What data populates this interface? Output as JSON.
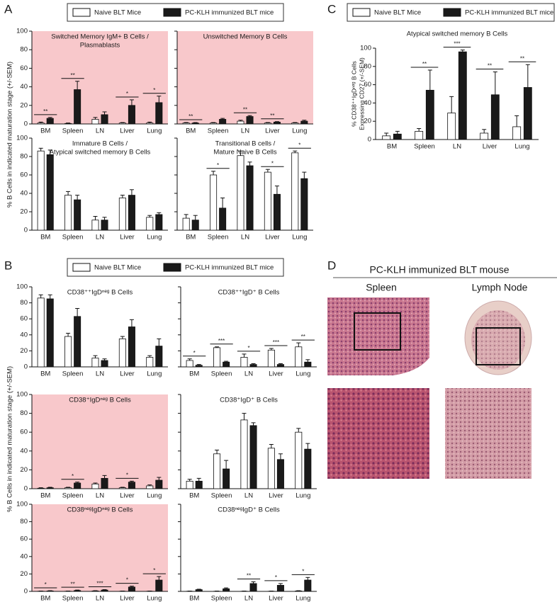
{
  "panel_labels": [
    "A",
    "B",
    "C",
    "D"
  ],
  "shared_y_labels": [
    "% B Cells in indicated maturation stage (+/-SEM)",
    "% B Cells in indicated maturation stage (+/-SEM)"
  ],
  "images": {
    "title": "PC-KLH immunized BLT mouse",
    "columns": [
      "Spleen",
      "Lymph Node"
    ]
  },
  "chart_data": [
    {
      "type": "bar",
      "title": [
        "Switched Memory IgM+ B Cells /",
        "Plasmablasts"
      ],
      "background": "#f8c8cb",
      "categories": [
        "BM",
        "Spleen",
        "LN",
        "Liver",
        "Lung"
      ],
      "ylim": [
        0,
        100
      ],
      "yticks": [
        0,
        20,
        40,
        60,
        80,
        100
      ],
      "series": [
        {
          "name": "Naive BLT Mice",
          "color": "#ffffff",
          "values": [
            1,
            0.5,
            5,
            1,
            1
          ],
          "errors": [
            1,
            0.5,
            2,
            0.5,
            1
          ]
        },
        {
          "name": "PC-KLH immunized BLT mice",
          "color": "#1a1a1a",
          "values": [
            6,
            37,
            10,
            20,
            23
          ],
          "errors": [
            1,
            9,
            3,
            6,
            7
          ]
        }
      ],
      "significance": [
        {
          "category": "BM",
          "label": "**"
        },
        {
          "category": "Spleen",
          "label": "**"
        },
        {
          "category": "Liver",
          "label": "*"
        },
        {
          "category": "Lung",
          "label": "*"
        }
      ]
    },
    {
      "type": "bar",
      "title": [
        "Unswitched Memory B Cells"
      ],
      "background": "#f8c8cb",
      "categories": [
        "BM",
        "Spleen",
        "LN",
        "Liver",
        "Lung"
      ],
      "ylim": [
        0,
        100
      ],
      "yticks": [
        0,
        20,
        40,
        60,
        80,
        100
      ],
      "series": [
        {
          "name": "Naive BLT Mice",
          "color": "#ffffff",
          "values": [
            1,
            1,
            3,
            1,
            1
          ],
          "errors": [
            0.5,
            0.5,
            1,
            0.5,
            0.5
          ]
        },
        {
          "name": "PC-KLH immunized BLT mice",
          "color": "#1a1a1a",
          "values": [
            1,
            5,
            8,
            2,
            3
          ],
          "errors": [
            0.5,
            1,
            1,
            0.5,
            1
          ]
        }
      ],
      "significance": [
        {
          "category": "BM",
          "label": "**"
        },
        {
          "category": "LN",
          "label": "**"
        },
        {
          "category": "Liver",
          "label": "**"
        }
      ]
    },
    {
      "type": "bar",
      "title": [
        "Immature B Cells /",
        "Atypical switched memory B Cells"
      ],
      "categories": [
        "BM",
        "Spleen",
        "LN",
        "Liver",
        "Lung"
      ],
      "ylim": [
        0,
        100
      ],
      "yticks": [
        0,
        20,
        40,
        60,
        80,
        100
      ],
      "series": [
        {
          "name": "Naive BLT Mice",
          "color": "#ffffff",
          "values": [
            86,
            38,
            11,
            35,
            14
          ],
          "errors": [
            3,
            4,
            4,
            3,
            2
          ]
        },
        {
          "name": "PC-KLH immunized BLT mice",
          "color": "#1a1a1a",
          "values": [
            82,
            33,
            11,
            38,
            17
          ],
          "errors": [
            5,
            5,
            3,
            6,
            2
          ]
        }
      ],
      "significance": []
    },
    {
      "type": "bar",
      "title": [
        "Transitional B cells /",
        "Mature Naive B Cells"
      ],
      "categories": [
        "BM",
        "Spleen",
        "LN",
        "Liver",
        "Lung"
      ],
      "ylim": [
        0,
        100
      ],
      "yticks": [
        0,
        20,
        40,
        60,
        80,
        100
      ],
      "series": [
        {
          "name": "Naive BLT Mice",
          "color": "#ffffff",
          "values": [
            13,
            60,
            81,
            63,
            84
          ],
          "errors": [
            4,
            4,
            5,
            3,
            2
          ]
        },
        {
          "name": "PC-KLH immunized BLT mice",
          "color": "#1a1a1a",
          "values": [
            11,
            24,
            70,
            39,
            56
          ],
          "errors": [
            5,
            11,
            4,
            9,
            7
          ]
        }
      ],
      "significance": [
        {
          "category": "Spleen",
          "label": "*"
        },
        {
          "category": "Liver",
          "label": "*"
        },
        {
          "category": "Lung",
          "label": "*"
        }
      ]
    },
    {
      "type": "bar",
      "title": [
        "Atypical switched memory B Cells"
      ],
      "ylabel": [
        "% CD38⁺⁺IgDⁿᵉᵍ B Cells",
        "Expressing CD27 (+/-SEM)"
      ],
      "categories": [
        "BM",
        "Spleen",
        "LN",
        "Liver",
        "Lung"
      ],
      "ylim": [
        0,
        100
      ],
      "yticks": [
        0,
        20,
        40,
        60,
        80,
        100
      ],
      "series": [
        {
          "name": "Naive BLT Mice",
          "color": "#ffffff",
          "values": [
            4,
            9,
            29,
            7,
            14
          ],
          "errors": [
            3,
            3,
            18,
            4,
            12
          ]
        },
        {
          "name": "PC-KLH immunized BLT mice",
          "color": "#1a1a1a",
          "values": [
            6,
            54,
            96,
            49,
            57
          ],
          "errors": [
            3,
            22,
            2,
            25,
            25
          ]
        }
      ],
      "significance": [
        {
          "category": "Spleen",
          "label": "**"
        },
        {
          "category": "LN",
          "label": "***"
        },
        {
          "category": "Liver",
          "label": "**"
        },
        {
          "category": "Lung",
          "label": "**"
        }
      ]
    },
    {
      "type": "bar",
      "title": [
        "CD38⁺⁺IgDⁿᵉᵍ B Cells"
      ],
      "categories": [
        "BM",
        "Spleen",
        "LN",
        "Liver",
        "Lung"
      ],
      "ylim": [
        0,
        100
      ],
      "yticks": [
        0,
        20,
        40,
        60,
        80,
        100
      ],
      "series": [
        {
          "name": "Naive BLT Mice",
          "color": "#ffffff",
          "values": [
            86,
            38,
            11,
            35,
            12
          ],
          "errors": [
            4,
            4,
            3,
            3,
            2
          ]
        },
        {
          "name": "PC-KLH immunized BLT mice",
          "color": "#1a1a1a",
          "values": [
            85,
            63,
            8,
            50,
            26
          ],
          "errors": [
            5,
            10,
            2,
            9,
            9
          ]
        }
      ],
      "significance": []
    },
    {
      "type": "bar",
      "title": [
        "CD38⁺⁺IgD⁺ B Cells"
      ],
      "categories": [
        "BM",
        "Spleen",
        "LN",
        "Liver",
        "Lung"
      ],
      "ylim": [
        0,
        100
      ],
      "yticks": [
        0,
        20,
        40,
        60,
        80,
        100
      ],
      "series": [
        {
          "name": "Naive BLT Mice",
          "color": "#ffffff",
          "values": [
            8,
            24,
            12,
            21,
            25
          ],
          "errors": [
            2,
            1,
            4,
            2,
            5
          ]
        },
        {
          "name": "PC-KLH immunized BLT mice",
          "color": "#1a1a1a",
          "values": [
            2,
            6,
            3,
            3,
            6
          ],
          "errors": [
            1,
            1,
            1,
            1,
            3
          ]
        }
      ],
      "significance": [
        {
          "category": "BM",
          "label": "*"
        },
        {
          "category": "Spleen",
          "label": "***"
        },
        {
          "category": "LN",
          "label": "*"
        },
        {
          "category": "Liver",
          "label": "***"
        },
        {
          "category": "Lung",
          "label": "**"
        }
      ]
    },
    {
      "type": "bar",
      "title": [
        "CD38⁺IgDⁿᵉᵍ B Cells"
      ],
      "background": "#f8c8cb",
      "categories": [
        "BM",
        "Spleen",
        "LN",
        "Liver",
        "Lung"
      ],
      "ylim": [
        0,
        100
      ],
      "yticks": [
        0,
        20,
        40,
        60,
        80,
        100
      ],
      "series": [
        {
          "name": "Naive BLT Mice",
          "color": "#ffffff",
          "values": [
            0.5,
            1,
            5,
            1,
            3
          ],
          "errors": [
            0.5,
            0.5,
            1,
            0.5,
            1
          ]
        },
        {
          "name": "PC-KLH immunized BLT mice",
          "color": "#1a1a1a",
          "values": [
            1,
            6,
            11,
            7,
            9
          ],
          "errors": [
            0.5,
            1,
            3,
            1,
            3
          ]
        }
      ],
      "significance": [
        {
          "category": "Spleen",
          "label": "*"
        },
        {
          "category": "Liver",
          "label": "*"
        }
      ]
    },
    {
      "type": "bar",
      "title": [
        "CD38⁺IgD⁺ B Cells"
      ],
      "categories": [
        "BM",
        "Spleen",
        "LN",
        "Liver",
        "Lung"
      ],
      "ylim": [
        0,
        100
      ],
      "yticks": [
        0,
        20,
        40,
        60,
        80,
        100
      ],
      "series": [
        {
          "name": "Naive BLT Mice",
          "color": "#ffffff",
          "values": [
            8,
            37,
            73,
            43,
            60
          ],
          "errors": [
            2,
            4,
            7,
            4,
            4
          ]
        },
        {
          "name": "PC-KLH immunized BLT mice",
          "color": "#1a1a1a",
          "values": [
            8,
            21,
            67,
            31,
            42
          ],
          "errors": [
            3,
            9,
            3,
            6,
            6
          ]
        }
      ],
      "significance": []
    },
    {
      "type": "bar",
      "title": [
        "CD38ⁿᵉᵍIgDⁿᵉᵍ B Cells"
      ],
      "background": "#f8c8cb",
      "categories": [
        "BM",
        "Spleen",
        "LN",
        "Liver",
        "Lung"
      ],
      "ylim": [
        0,
        100
      ],
      "yticks": [
        0,
        20,
        40,
        60,
        80,
        100
      ],
      "series": [
        {
          "name": "Naive BLT Mice",
          "color": "#ffffff",
          "values": [
            0.2,
            0.2,
            0.5,
            0.2,
            0.2
          ],
          "errors": [
            0.2,
            0.2,
            0.3,
            0.2,
            0.2
          ]
        },
        {
          "name": "PC-KLH immunized BLT mice",
          "color": "#1a1a1a",
          "values": [
            0.5,
            1,
            1.5,
            5,
            13
          ],
          "errors": [
            0.3,
            0.5,
            0.5,
            1,
            4
          ]
        }
      ],
      "significance": [
        {
          "category": "BM",
          "label": "*"
        },
        {
          "category": "Spleen",
          "label": "**"
        },
        {
          "category": "LN",
          "label": "***"
        },
        {
          "category": "Liver",
          "label": "*"
        },
        {
          "category": "Lung",
          "label": "*"
        }
      ]
    },
    {
      "type": "bar",
      "title": [
        "CD38ⁿᵉᵍIgD⁺ B Cells"
      ],
      "categories": [
        "BM",
        "Spleen",
        "LN",
        "Liver",
        "Lung"
      ],
      "ylim": [
        0,
        100
      ],
      "yticks": [
        0,
        20,
        40,
        60,
        80,
        100
      ],
      "series": [
        {
          "name": "Naive BLT Mice",
          "color": "#ffffff",
          "values": [
            0.2,
            0.2,
            0.2,
            0.2,
            0.5
          ],
          "errors": [
            0.2,
            0.2,
            0.2,
            0.2,
            0.3
          ]
        },
        {
          "name": "PC-KLH immunized BLT mice",
          "color": "#1a1a1a",
          "values": [
            2,
            3,
            9,
            7,
            13
          ],
          "errors": [
            0.5,
            1,
            2,
            2,
            3
          ]
        }
      ],
      "significance": [
        {
          "category": "LN",
          "label": "**"
        },
        {
          "category": "Liver",
          "label": "*"
        },
        {
          "category": "Lung",
          "label": "*"
        }
      ]
    }
  ]
}
